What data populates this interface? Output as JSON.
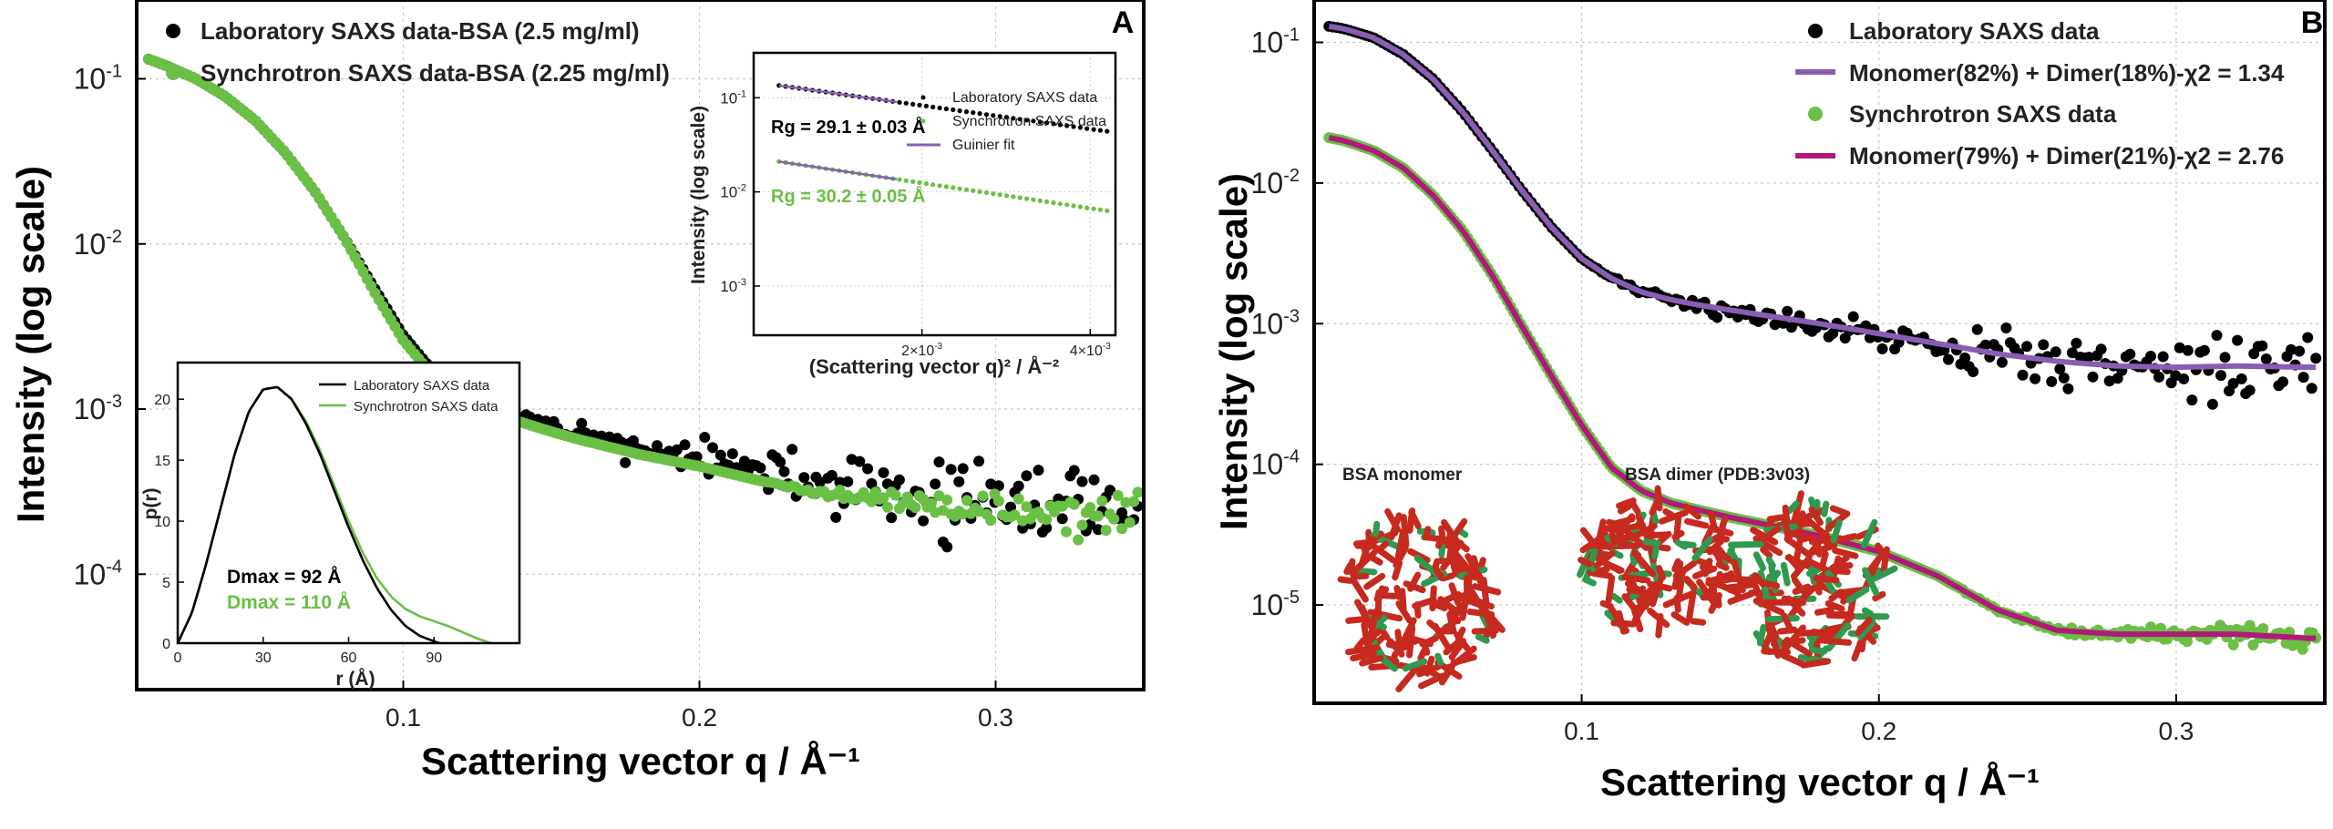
{
  "chart_data": [
    {
      "panel": "A",
      "type": "scatter",
      "xlabel": "Scattering vector q / Å⁻¹",
      "ylabel": "Intensity (log scale)",
      "xlim": [
        0.01,
        0.35
      ],
      "ylim": [
        2e-05,
        0.3
      ],
      "yscale": "log",
      "grid": true,
      "legend_position": "top-left",
      "x_ticks": [
        {
          "v": 0.1,
          "label": "0.1"
        },
        {
          "v": 0.2,
          "label": "0.2"
        },
        {
          "v": 0.3,
          "label": "0.3"
        }
      ],
      "y_ticks": [
        {
          "v": 0.1,
          "base": "10",
          "exp": "-1"
        },
        {
          "v": 0.01,
          "base": "10",
          "exp": "-2"
        },
        {
          "v": 0.001,
          "base": "10",
          "exp": "-3"
        },
        {
          "v": 0.0001,
          "base": "10",
          "exp": "-4"
        }
      ],
      "series": [
        {
          "name": "Laboratory SAXS data-BSA (2.5 mg/ml)",
          "color": "#000000",
          "x": [
            0.01,
            0.02,
            0.03,
            0.04,
            0.05,
            0.06,
            0.07,
            0.08,
            0.09,
            0.1,
            0.11,
            0.12,
            0.13,
            0.14,
            0.15,
            0.16,
            0.18,
            0.2,
            0.22,
            0.24,
            0.26,
            0.28,
            0.3,
            0.32,
            0.345
          ],
          "y": [
            0.14,
            0.12,
            0.1,
            0.078,
            0.056,
            0.036,
            0.021,
            0.011,
            0.0055,
            0.0028,
            0.0017,
            0.00125,
            0.001,
            0.00088,
            0.00078,
            0.0007,
            0.00058,
            0.0005,
            0.00042,
            0.00036,
            0.00032,
            0.00029,
            0.00027,
            0.00026,
            0.00025
          ],
          "noise_from": 0.12
        },
        {
          "name": "Synchrotron SAXS data-BSA (2.25 mg/ml)",
          "color": "#6abf45",
          "x": [
            0.01,
            0.02,
            0.03,
            0.04,
            0.05,
            0.06,
            0.07,
            0.08,
            0.09,
            0.1,
            0.11,
            0.12,
            0.13,
            0.14,
            0.15,
            0.16,
            0.18,
            0.2,
            0.22,
            0.24,
            0.26,
            0.28,
            0.3,
            0.32,
            0.345
          ],
          "y": [
            0.14,
            0.12,
            0.1,
            0.078,
            0.056,
            0.036,
            0.021,
            0.011,
            0.0052,
            0.0026,
            0.0016,
            0.00118,
            0.00095,
            0.00083,
            0.00073,
            0.00065,
            0.00053,
            0.00045,
            0.00037,
            0.00031,
            0.00028,
            0.00026,
            0.00025,
            0.00024,
            0.00023
          ],
          "noise_from": 0.22
        }
      ],
      "insets": [
        {
          "name": "guinier",
          "type": "scatter",
          "xlabel": "(Scattering vector q)² / Å⁻²",
          "ylabel": "Intensity (log scale)",
          "xlim": [
            0.0,
            0.0043
          ],
          "ylim": [
            0.0003,
            0.3
          ],
          "yscale": "log",
          "x_ticks": [
            {
              "v": 0.002,
              "base": "2×10",
              "exp": "-3"
            },
            {
              "v": 0.004,
              "base": "4×10",
              "exp": "-3"
            }
          ],
          "y_ticks": [
            {
              "v": 0.1,
              "base": "10",
              "exp": "-1"
            },
            {
              "v": 0.01,
              "base": "10",
              "exp": "-2"
            },
            {
              "v": 0.001,
              "base": "10",
              "exp": "-3"
            }
          ],
          "series": [
            {
              "name": "Laboratory SAXS data",
              "color": "#000000",
              "x_range": [
                0.0003,
                0.0042
              ],
              "y_start": 0.135,
              "y_end": 0.044
            },
            {
              "name": "Synchrotron SAXS data",
              "color": "#6abf45",
              "x_range": [
                0.0003,
                0.0042
              ],
              "y_start": 0.021,
              "y_end": 0.0063
            },
            {
              "name": "Guinier fit",
              "color": "#8a5db4",
              "x_range": [
                0.0003,
                0.0017
              ]
            }
          ],
          "annotations": [
            {
              "text": "Rg = 29.1 ± 0.03 Å",
              "color": "#000000"
            },
            {
              "text": "Rg = 30.2 ± 0.05 Å",
              "color": "#6abf45"
            }
          ]
        },
        {
          "name": "pr",
          "type": "line",
          "xlabel": "r (Å)",
          "ylabel": "p(r)",
          "xlim": [
            0,
            120
          ],
          "ylim": [
            0,
            23
          ],
          "x_ticks": [
            0,
            30,
            60,
            90
          ],
          "y_ticks": [
            0,
            5,
            10,
            15,
            20
          ],
          "series": [
            {
              "name": "Laboratory SAXS data",
              "color": "#000000",
              "x": [
                0,
                5,
                10,
                15,
                20,
                25,
                30,
                35,
                40,
                45,
                50,
                55,
                60,
                65,
                70,
                75,
                80,
                85,
                90,
                92
              ],
              "y": [
                0,
                2.5,
                6.5,
                11,
                15.5,
                19,
                20.8,
                21.0,
                20.0,
                18.0,
                15.5,
                12.5,
                9.5,
                6.8,
                4.5,
                2.7,
                1.4,
                0.6,
                0.15,
                0
              ]
            },
            {
              "name": "Synchrotron SAXS data",
              "color": "#6abf45",
              "x": [
                0,
                5,
                10,
                15,
                20,
                25,
                30,
                35,
                40,
                45,
                50,
                55,
                60,
                65,
                70,
                75,
                80,
                85,
                90,
                95,
                100,
                105,
                110
              ],
              "y": [
                0,
                2.5,
                6.5,
                11,
                15.5,
                19,
                20.8,
                21.0,
                20.0,
                18.2,
                15.8,
                12.9,
                10.0,
                7.4,
                5.3,
                3.8,
                2.8,
                2.2,
                1.8,
                1.4,
                0.9,
                0.4,
                0
              ]
            }
          ],
          "annotations": [
            {
              "text": "Dmax = 92 Å",
              "color": "#000000"
            },
            {
              "text": "Dmax = 110 Å",
              "color": "#6abf45"
            }
          ]
        }
      ]
    },
    {
      "panel": "B",
      "type": "scatter",
      "xlabel": "Scattering vector q / Å⁻¹",
      "ylabel": "Intensity (log scale)",
      "xlim": [
        0.01,
        0.35
      ],
      "ylim": [
        2e-06,
        0.2
      ],
      "yscale": "log",
      "grid": true,
      "legend_position": "top-right",
      "x_ticks": [
        {
          "v": 0.1,
          "label": "0.1"
        },
        {
          "v": 0.2,
          "label": "0.2"
        },
        {
          "v": 0.3,
          "label": "0.3"
        }
      ],
      "y_ticks": [
        {
          "v": 0.1,
          "base": "10",
          "exp": "-1"
        },
        {
          "v": 0.01,
          "base": "10",
          "exp": "-2"
        },
        {
          "v": 0.001,
          "base": "10",
          "exp": "-3"
        },
        {
          "v": 0.0001,
          "base": "10",
          "exp": "-4"
        },
        {
          "v": 1e-05,
          "base": "10",
          "exp": "-5"
        }
      ],
      "series": [
        {
          "name": "Laboratory SAXS data",
          "kind": "points",
          "color": "#000000",
          "x": [
            0.015,
            0.02,
            0.03,
            0.04,
            0.05,
            0.06,
            0.07,
            0.08,
            0.09,
            0.1,
            0.11,
            0.12,
            0.13,
            0.14,
            0.15,
            0.16,
            0.18,
            0.2,
            0.22,
            0.24,
            0.26,
            0.28,
            0.3,
            0.32,
            0.345
          ],
          "y": [
            0.13,
            0.125,
            0.108,
            0.082,
            0.055,
            0.032,
            0.017,
            0.0088,
            0.0048,
            0.0029,
            0.0021,
            0.00168,
            0.00148,
            0.00135,
            0.00125,
            0.00116,
            0.001,
            0.00085,
            0.00072,
            0.00061,
            0.00054,
            0.0005,
            0.00049,
            0.0005,
            0.00049
          ],
          "noise_from": 0.1
        },
        {
          "name": "Monomer(82%) + Dimer(18%)-χ2 = 1.34",
          "kind": "line",
          "color": "#8a5db4",
          "follows": 0
        },
        {
          "name": "Synchrotron SAXS data",
          "kind": "points",
          "color": "#6abf45",
          "x": [
            0.015,
            0.02,
            0.03,
            0.04,
            0.05,
            0.06,
            0.07,
            0.08,
            0.09,
            0.1,
            0.11,
            0.12,
            0.13,
            0.14,
            0.15,
            0.16,
            0.18,
            0.2,
            0.22,
            0.24,
            0.26,
            0.28,
            0.3,
            0.32,
            0.345
          ],
          "y": [
            0.021,
            0.02,
            0.017,
            0.0128,
            0.0082,
            0.0046,
            0.0022,
            0.00095,
            0.00042,
            0.00019,
            9.5e-05,
            6.5e-05,
            5.3e-05,
            4.7e-05,
            4.2e-05,
            3.8e-05,
            3.1e-05,
            2.4e-05,
            1.6e-05,
            9.2e-06,
            6.6e-06,
            6.2e-06,
            6.2e-06,
            6.2e-06,
            5.8e-06
          ],
          "noise_from": 0.22
        },
        {
          "name": "Monomer(79%) + Dimer(21%)-χ2 = 2.76",
          "kind": "line",
          "color": "#b0197a",
          "follows": 2
        }
      ],
      "annotations": [
        {
          "text": "BSA monomer"
        },
        {
          "text": "BSA dimer (PDB:3v03)"
        }
      ]
    }
  ],
  "panel_labels": [
    "A",
    "B"
  ]
}
